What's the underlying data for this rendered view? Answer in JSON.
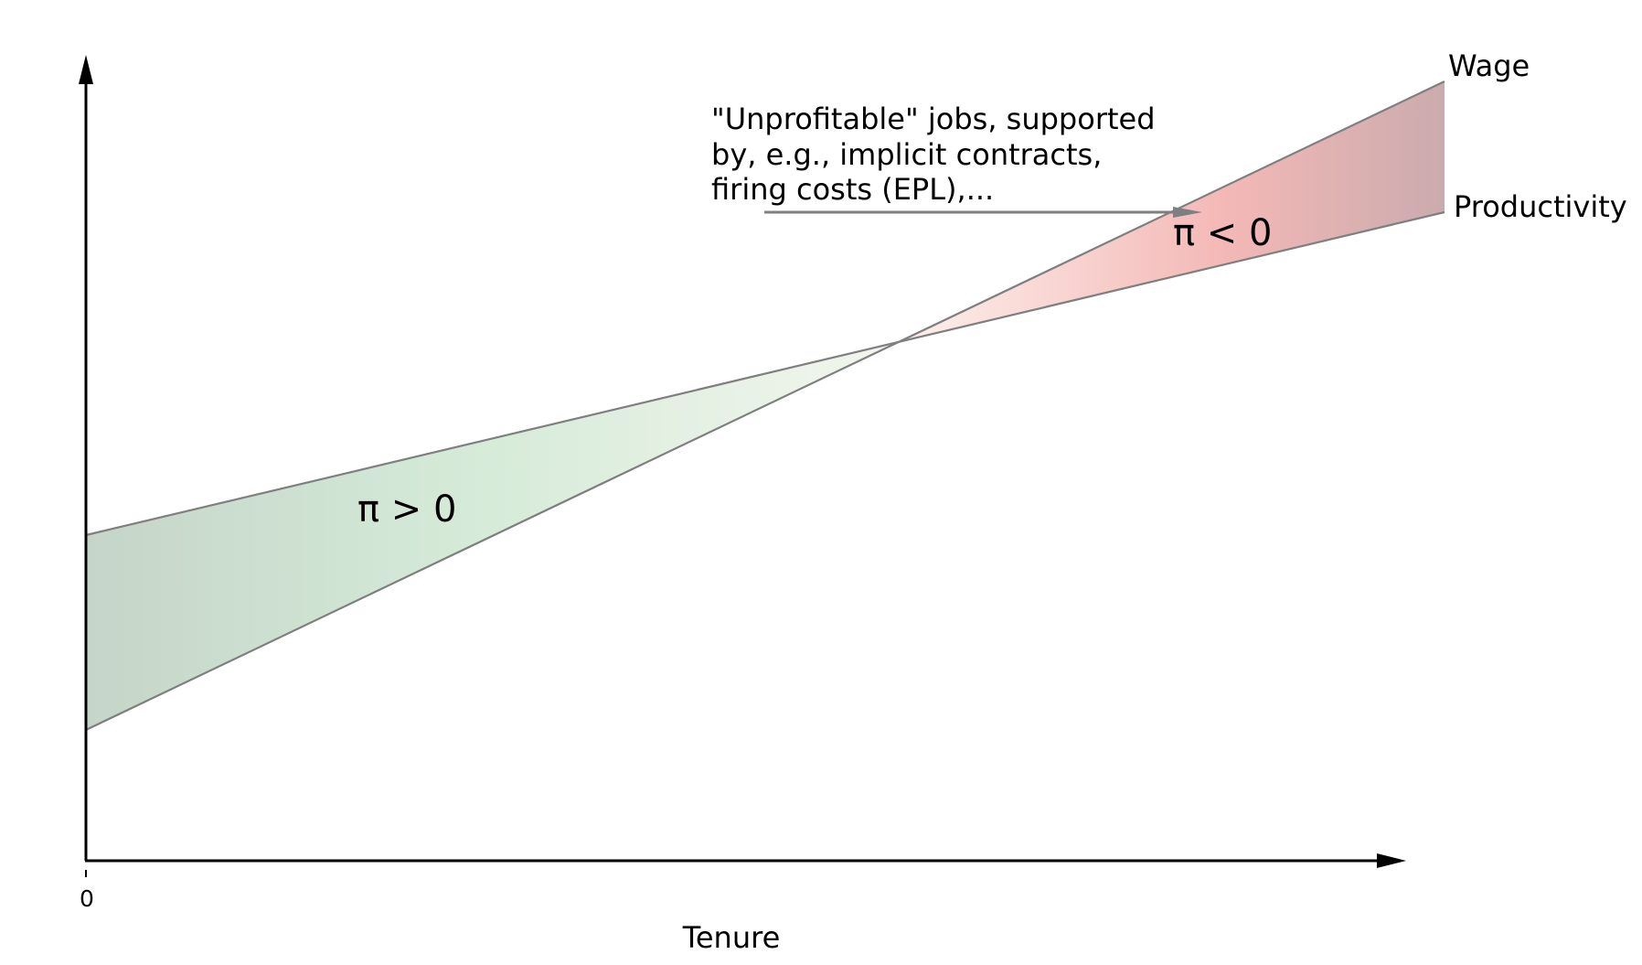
{
  "diagram": {
    "lines": {
      "wage_label": "Wage",
      "productivity_label": "Productivity",
      "color": "#7f7f7f"
    },
    "regions": {
      "profit_label": "π > 0",
      "loss_label": "π < 0",
      "profit_colors": [
        "#c5d5c9",
        "#d4ead7",
        "#f3f6ee"
      ],
      "loss_colors": [
        "#fdf0ec",
        "#f3b8b6",
        "#cbabae"
      ]
    },
    "annotation": {
      "lines": [
        "\"Unprofitable\" jobs, supported",
        "by, e.g., implicit contracts,",
        "firing costs (EPL),..."
      ]
    },
    "axes": {
      "x_label": "Tenure",
      "x_tick_label": "0",
      "color": "#000000"
    }
  }
}
